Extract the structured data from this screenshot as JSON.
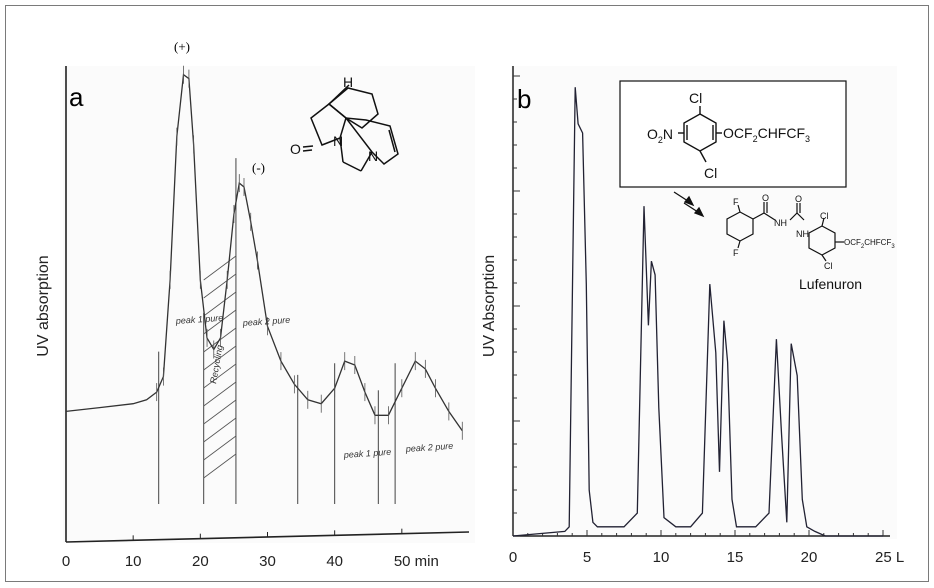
{
  "chart_data": [
    {
      "type": "line",
      "panel_label": "a",
      "title": "",
      "ylabel": "UV absorption",
      "xlabel": "",
      "xlim": [
        0,
        60
      ],
      "x_ticks": [
        0,
        10,
        20,
        30,
        40,
        50
      ],
      "x_tick_labels": [
        "0",
        "10",
        "20",
        "30",
        "40",
        "50 min"
      ],
      "grid": false,
      "annotations": [
        "(+)",
        "(-)"
      ],
      "fractions": [
        "peak 1 pure",
        "Recycling",
        "peak 2 pure",
        "peak 1 pure",
        "peak 2 pure"
      ],
      "series": [
        {
          "x": [
            0,
            5,
            10,
            12,
            13.5,
            14.5,
            15.5,
            16.5,
            17.5,
            18.3,
            19,
            20,
            21,
            22,
            23,
            24,
            25,
            25.8,
            26.5,
            27.5,
            28.5,
            30,
            32,
            34,
            36,
            38,
            40,
            41.5,
            43,
            44.5,
            46,
            48,
            50,
            52,
            53.5,
            55,
            57,
            59
          ],
          "y": [
            0.11,
            0.12,
            0.13,
            0.14,
            0.16,
            0.2,
            0.45,
            0.82,
            0.98,
            0.97,
            0.8,
            0.45,
            0.3,
            0.27,
            0.3,
            0.45,
            0.62,
            0.7,
            0.69,
            0.6,
            0.5,
            0.33,
            0.24,
            0.18,
            0.14,
            0.13,
            0.17,
            0.24,
            0.23,
            0.16,
            0.1,
            0.1,
            0.17,
            0.24,
            0.22,
            0.17,
            0.11,
            0.06
          ]
        }
      ]
    },
    {
      "type": "line",
      "panel_label": "b",
      "title": "",
      "ylabel": "UV Absorption",
      "xlabel": "",
      "xlim": [
        0,
        25
      ],
      "x_ticks": [
        0,
        5,
        10,
        15,
        20,
        25
      ],
      "x_tick_labels": [
        "0",
        "5",
        "10",
        "15",
        "20",
        "25 L"
      ],
      "grid": false,
      "compound_label": "Lufenuron",
      "series": [
        {
          "x": [
            0,
            3.5,
            3.8,
            4.2,
            4.4,
            4.7,
            4.95,
            5.15,
            5.4,
            5.7,
            6.5,
            7.5,
            8.4,
            8.85,
            9.15,
            9.35,
            9.6,
            9.85,
            10.2,
            11,
            12,
            12.8,
            13.3,
            13.7,
            13.95,
            14.25,
            14.5,
            14.8,
            15.1,
            15.6,
            16.4,
            17.3,
            17.8,
            18.15,
            18.5,
            18.8,
            19.2,
            19.55,
            19.85,
            20.4,
            21.1,
            22,
            25
          ],
          "y": [
            0.0,
            0.01,
            0.02,
            0.98,
            0.9,
            0.88,
            0.55,
            0.1,
            0.03,
            0.02,
            0.02,
            0.02,
            0.05,
            0.72,
            0.46,
            0.6,
            0.57,
            0.28,
            0.04,
            0.02,
            0.02,
            0.05,
            0.55,
            0.4,
            0.14,
            0.47,
            0.38,
            0.08,
            0.02,
            0.02,
            0.02,
            0.05,
            0.43,
            0.22,
            0.03,
            0.42,
            0.35,
            0.08,
            0.02,
            0.01,
            0.0,
            0.0,
            0.0
          ]
        }
      ]
    }
  ],
  "structure_a": {
    "atoms": [
      "H",
      "O",
      "N",
      "N"
    ]
  },
  "structure_b": {
    "top": {
      "cl_top": "Cl",
      "nitro_main": "O",
      "nitro_sub": "2",
      "nitro_tail": "N",
      "ether_1": "OCF",
      "ether_sub1": "2",
      "ether_2": "CHFCF",
      "ether_sub2": "3",
      "cl_bottom": "Cl"
    },
    "lufenuron": {
      "f_top": "F",
      "f_bottom": "F",
      "o_1": "O",
      "o_2": "O",
      "nh_1": "NH",
      "nh_2": "NH",
      "cl_top": "Cl",
      "cl_bottom": "Cl",
      "ether": "OCF",
      "ether_sub": "2",
      "ether_tail": "CHFCF",
      "ether_sub2": "3"
    }
  }
}
